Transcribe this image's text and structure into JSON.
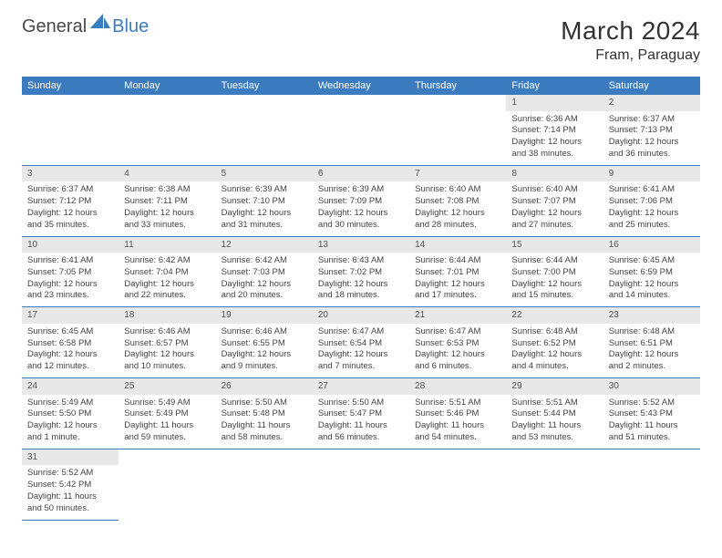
{
  "logo": {
    "text1": "General",
    "text2": "Blue"
  },
  "title": "March 2024",
  "location": "Fram, Paraguay",
  "colors": {
    "accent": "#3b7bbf",
    "header_bg": "#3b7bbf",
    "header_text": "#ffffff",
    "daynum_bg": "#e8e8e8",
    "text": "#444444",
    "border": "#3b7bbf"
  },
  "day_names": [
    "Sunday",
    "Monday",
    "Tuesday",
    "Wednesday",
    "Thursday",
    "Friday",
    "Saturday"
  ],
  "weeks": [
    [
      null,
      null,
      null,
      null,
      null,
      {
        "n": "1",
        "sr": "6:36 AM",
        "ss": "7:14 PM",
        "dl": "12 hours and 38 minutes."
      },
      {
        "n": "2",
        "sr": "6:37 AM",
        "ss": "7:13 PM",
        "dl": "12 hours and 36 minutes."
      }
    ],
    [
      {
        "n": "3",
        "sr": "6:37 AM",
        "ss": "7:12 PM",
        "dl": "12 hours and 35 minutes."
      },
      {
        "n": "4",
        "sr": "6:38 AM",
        "ss": "7:11 PM",
        "dl": "12 hours and 33 minutes."
      },
      {
        "n": "5",
        "sr": "6:39 AM",
        "ss": "7:10 PM",
        "dl": "12 hours and 31 minutes."
      },
      {
        "n": "6",
        "sr": "6:39 AM",
        "ss": "7:09 PM",
        "dl": "12 hours and 30 minutes."
      },
      {
        "n": "7",
        "sr": "6:40 AM",
        "ss": "7:08 PM",
        "dl": "12 hours and 28 minutes."
      },
      {
        "n": "8",
        "sr": "6:40 AM",
        "ss": "7:07 PM",
        "dl": "12 hours and 27 minutes."
      },
      {
        "n": "9",
        "sr": "6:41 AM",
        "ss": "7:06 PM",
        "dl": "12 hours and 25 minutes."
      }
    ],
    [
      {
        "n": "10",
        "sr": "6:41 AM",
        "ss": "7:05 PM",
        "dl": "12 hours and 23 minutes."
      },
      {
        "n": "11",
        "sr": "6:42 AM",
        "ss": "7:04 PM",
        "dl": "12 hours and 22 minutes."
      },
      {
        "n": "12",
        "sr": "6:42 AM",
        "ss": "7:03 PM",
        "dl": "12 hours and 20 minutes."
      },
      {
        "n": "13",
        "sr": "6:43 AM",
        "ss": "7:02 PM",
        "dl": "12 hours and 18 minutes."
      },
      {
        "n": "14",
        "sr": "6:44 AM",
        "ss": "7:01 PM",
        "dl": "12 hours and 17 minutes."
      },
      {
        "n": "15",
        "sr": "6:44 AM",
        "ss": "7:00 PM",
        "dl": "12 hours and 15 minutes."
      },
      {
        "n": "16",
        "sr": "6:45 AM",
        "ss": "6:59 PM",
        "dl": "12 hours and 14 minutes."
      }
    ],
    [
      {
        "n": "17",
        "sr": "6:45 AM",
        "ss": "6:58 PM",
        "dl": "12 hours and 12 minutes."
      },
      {
        "n": "18",
        "sr": "6:46 AM",
        "ss": "6:57 PM",
        "dl": "12 hours and 10 minutes."
      },
      {
        "n": "19",
        "sr": "6:46 AM",
        "ss": "6:55 PM",
        "dl": "12 hours and 9 minutes."
      },
      {
        "n": "20",
        "sr": "6:47 AM",
        "ss": "6:54 PM",
        "dl": "12 hours and 7 minutes."
      },
      {
        "n": "21",
        "sr": "6:47 AM",
        "ss": "6:53 PM",
        "dl": "12 hours and 6 minutes."
      },
      {
        "n": "22",
        "sr": "6:48 AM",
        "ss": "6:52 PM",
        "dl": "12 hours and 4 minutes."
      },
      {
        "n": "23",
        "sr": "6:48 AM",
        "ss": "6:51 PM",
        "dl": "12 hours and 2 minutes."
      }
    ],
    [
      {
        "n": "24",
        "sr": "5:49 AM",
        "ss": "5:50 PM",
        "dl": "12 hours and 1 minute."
      },
      {
        "n": "25",
        "sr": "5:49 AM",
        "ss": "5:49 PM",
        "dl": "11 hours and 59 minutes."
      },
      {
        "n": "26",
        "sr": "5:50 AM",
        "ss": "5:48 PM",
        "dl": "11 hours and 58 minutes."
      },
      {
        "n": "27",
        "sr": "5:50 AM",
        "ss": "5:47 PM",
        "dl": "11 hours and 56 minutes."
      },
      {
        "n": "28",
        "sr": "5:51 AM",
        "ss": "5:46 PM",
        "dl": "11 hours and 54 minutes."
      },
      {
        "n": "29",
        "sr": "5:51 AM",
        "ss": "5:44 PM",
        "dl": "11 hours and 53 minutes."
      },
      {
        "n": "30",
        "sr": "5:52 AM",
        "ss": "5:43 PM",
        "dl": "11 hours and 51 minutes."
      }
    ],
    [
      {
        "n": "31",
        "sr": "5:52 AM",
        "ss": "5:42 PM",
        "dl": "11 hours and 50 minutes."
      },
      null,
      null,
      null,
      null,
      null,
      null
    ]
  ],
  "labels": {
    "sunrise": "Sunrise:",
    "sunset": "Sunset:",
    "daylight": "Daylight:"
  }
}
